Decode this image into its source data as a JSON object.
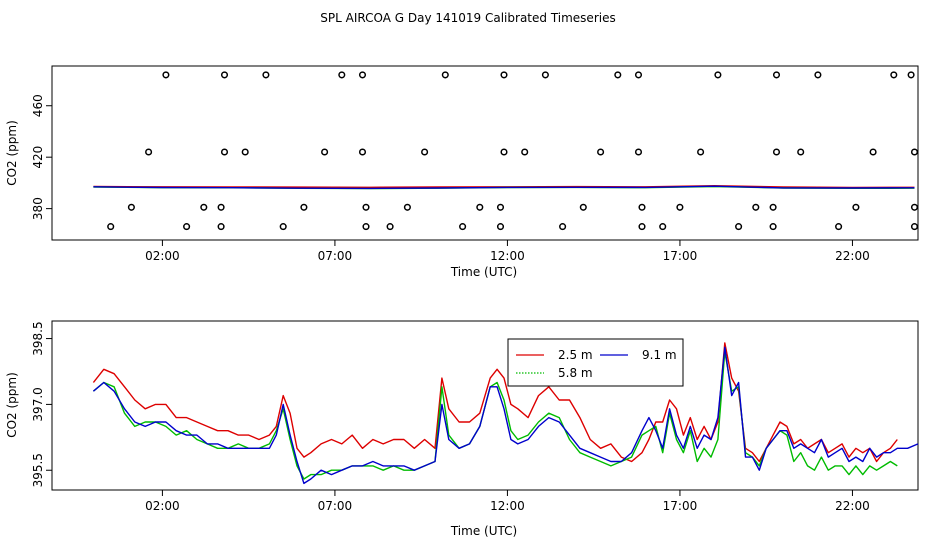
{
  "figure": {
    "title": "SPL AIRCOA G  Day 141019  Calibrated Timeseries"
  },
  "colors": {
    "series_2_5m": "#dd0000",
    "series_5_8m": "#00bb00",
    "series_9_1m": "#0000cc",
    "axes": "#000000",
    "background": "#ffffff"
  },
  "chart_data": [
    {
      "type": "line",
      "id": "top",
      "title": "",
      "xlabel": "Time (UTC)",
      "ylabel": "CO2 (ppm)",
      "xlim": [
        -1.2,
        23.9
      ],
      "ylim": [
        355.6,
        490.9
      ],
      "x_ticks": [
        2,
        7,
        12,
        17,
        22
      ],
      "x_tick_labels": [
        "02:00",
        "07:00",
        "12:00",
        "17:00",
        "22:00"
      ],
      "y_ticks": [
        380,
        420,
        460
      ],
      "y_tick_labels": [
        "380",
        "420",
        "460"
      ],
      "series": [
        {
          "name": "2.5 m",
          "color_key": "series_2_5m",
          "x": [
            0.0,
            2.0,
            4.0,
            6.0,
            8.0,
            10.0,
            12.0,
            14.0,
            16.0,
            18.0,
            20.0,
            22.0,
            23.8
          ],
          "values": [
            397.2,
            397.0,
            396.9,
            396.7,
            396.6,
            396.8,
            397.0,
            397.1,
            397.0,
            397.8,
            396.8,
            396.4,
            396.6
          ]
        },
        {
          "name": "5.8 m",
          "color_key": "series_5_8m",
          "x": [
            0.0,
            2.0,
            4.0,
            6.0,
            8.0,
            10.0,
            12.0,
            14.0,
            16.0,
            18.0,
            20.0,
            22.0,
            23.8
          ],
          "values": [
            396.8,
            396.3,
            396.2,
            395.8,
            395.6,
            395.9,
            396.4,
            396.5,
            396.3,
            397.2,
            396.0,
            395.8,
            395.9
          ]
        },
        {
          "name": "9.1 m",
          "color_key": "series_9_1m",
          "x": [
            0.0,
            2.0,
            4.0,
            6.0,
            8.0,
            10.0,
            12.0,
            14.0,
            16.0,
            18.0,
            20.0,
            22.0,
            23.8
          ],
          "values": [
            397.0,
            396.4,
            396.3,
            395.9,
            395.7,
            396.0,
            396.5,
            396.6,
            396.5,
            397.4,
            396.1,
            396.0,
            396.2
          ]
        }
      ],
      "markers": [
        {
          "x": 0.5,
          "y": 366
        },
        {
          "x": 1.1,
          "y": 381
        },
        {
          "x": 1.6,
          "y": 424
        },
        {
          "x": 2.1,
          "y": 484
        },
        {
          "x": 2.7,
          "y": 366
        },
        {
          "x": 3.2,
          "y": 381
        },
        {
          "x": 3.7,
          "y": 366
        },
        {
          "x": 3.7,
          "y": 381
        },
        {
          "x": 3.8,
          "y": 424
        },
        {
          "x": 3.8,
          "y": 484
        },
        {
          "x": 4.4,
          "y": 424
        },
        {
          "x": 5.0,
          "y": 484
        },
        {
          "x": 5.5,
          "y": 366
        },
        {
          "x": 6.1,
          "y": 381
        },
        {
          "x": 6.7,
          "y": 424
        },
        {
          "x": 7.2,
          "y": 484
        },
        {
          "x": 7.8,
          "y": 484
        },
        {
          "x": 7.8,
          "y": 424
        },
        {
          "x": 7.9,
          "y": 381
        },
        {
          "x": 7.9,
          "y": 366
        },
        {
          "x": 8.6,
          "y": 366
        },
        {
          "x": 9.1,
          "y": 381
        },
        {
          "x": 9.6,
          "y": 424
        },
        {
          "x": 10.2,
          "y": 484
        },
        {
          "x": 10.7,
          "y": 366
        },
        {
          "x": 11.2,
          "y": 381
        },
        {
          "x": 11.8,
          "y": 366
        },
        {
          "x": 11.8,
          "y": 381
        },
        {
          "x": 11.9,
          "y": 424
        },
        {
          "x": 11.9,
          "y": 484
        },
        {
          "x": 12.5,
          "y": 424
        },
        {
          "x": 13.1,
          "y": 484
        },
        {
          "x": 13.6,
          "y": 366
        },
        {
          "x": 14.2,
          "y": 381
        },
        {
          "x": 14.7,
          "y": 424
        },
        {
          "x": 15.2,
          "y": 484
        },
        {
          "x": 15.8,
          "y": 484
        },
        {
          "x": 15.8,
          "y": 424
        },
        {
          "x": 15.9,
          "y": 381
        },
        {
          "x": 15.9,
          "y": 366
        },
        {
          "x": 16.5,
          "y": 366
        },
        {
          "x": 17.0,
          "y": 381
        },
        {
          "x": 17.6,
          "y": 424
        },
        {
          "x": 18.1,
          "y": 484
        },
        {
          "x": 18.7,
          "y": 366
        },
        {
          "x": 19.2,
          "y": 381
        },
        {
          "x": 19.7,
          "y": 366
        },
        {
          "x": 19.7,
          "y": 381
        },
        {
          "x": 19.8,
          "y": 424
        },
        {
          "x": 19.8,
          "y": 484
        },
        {
          "x": 20.5,
          "y": 424
        },
        {
          "x": 21.0,
          "y": 484
        },
        {
          "x": 21.6,
          "y": 366
        },
        {
          "x": 22.1,
          "y": 381
        },
        {
          "x": 22.6,
          "y": 424
        },
        {
          "x": 23.2,
          "y": 484
        },
        {
          "x": 23.7,
          "y": 484
        },
        {
          "x": 23.8,
          "y": 424
        },
        {
          "x": 23.8,
          "y": 381
        },
        {
          "x": 23.8,
          "y": 366
        }
      ]
    },
    {
      "type": "line",
      "id": "bottom",
      "title": "",
      "xlabel": "Time (UTC)",
      "ylabel": "CO2 (ppm)",
      "xlim": [
        -1.2,
        23.9
      ],
      "ylim": [
        395.05,
        398.9
      ],
      "x_ticks": [
        2,
        7,
        12,
        17,
        22
      ],
      "x_tick_labels": [
        "02:00",
        "07:00",
        "12:00",
        "17:00",
        "22:00"
      ],
      "y_ticks": [
        395.5,
        397.0,
        398.5
      ],
      "y_tick_labels": [
        "395.5",
        "397.0",
        "398.5"
      ],
      "legend": {
        "position": "top-center",
        "entries": [
          {
            "label": "2.5 m",
            "color_key": "series_2_5m",
            "line": "solid"
          },
          {
            "label": "9.1 m",
            "color_key": "series_9_1m",
            "line": "solid"
          },
          {
            "label": "5.8 m",
            "color_key": "series_5_8m",
            "line": "dotted"
          }
        ]
      },
      "series": [
        {
          "name": "2.5 m",
          "color_key": "series_2_5m",
          "x": [
            0.0,
            0.3,
            0.6,
            0.9,
            1.2,
            1.5,
            1.8,
            2.1,
            2.4,
            2.7,
            3.0,
            3.3,
            3.6,
            3.9,
            4.2,
            4.5,
            4.8,
            5.1,
            5.3,
            5.5,
            5.7,
            5.9,
            6.1,
            6.3,
            6.6,
            6.9,
            7.2,
            7.5,
            7.8,
            8.1,
            8.4,
            8.7,
            9.0,
            9.3,
            9.6,
            9.9,
            10.1,
            10.3,
            10.6,
            10.9,
            11.2,
            11.5,
            11.7,
            11.9,
            12.1,
            12.3,
            12.6,
            12.9,
            13.2,
            13.5,
            13.8,
            14.1,
            14.4,
            14.7,
            15.0,
            15.3,
            15.6,
            15.9,
            16.1,
            16.3,
            16.5,
            16.7,
            16.9,
            17.1,
            17.3,
            17.5,
            17.7,
            17.9,
            18.1,
            18.3,
            18.5,
            18.7,
            18.9,
            19.1,
            19.3,
            19.5,
            19.7,
            19.9,
            20.1,
            20.3,
            20.5,
            20.7,
            20.9,
            21.1,
            21.3,
            21.5,
            21.7,
            21.9,
            22.1,
            22.3,
            22.5,
            22.7,
            22.9,
            23.1,
            23.3
          ],
          "values": [
            397.5,
            397.8,
            397.7,
            397.4,
            397.1,
            396.9,
            397.0,
            397.0,
            396.7,
            396.7,
            396.6,
            396.5,
            396.4,
            396.4,
            396.3,
            396.3,
            396.2,
            396.3,
            396.5,
            397.2,
            396.8,
            396.0,
            395.8,
            395.9,
            396.1,
            396.2,
            396.1,
            396.3,
            396.0,
            396.2,
            396.1,
            396.2,
            396.2,
            396.0,
            396.2,
            396.0,
            397.6,
            396.9,
            396.6,
            396.6,
            396.8,
            397.6,
            397.8,
            397.6,
            397.0,
            396.9,
            396.7,
            397.2,
            397.4,
            397.1,
            397.1,
            396.7,
            396.2,
            396.0,
            396.1,
            395.8,
            395.7,
            395.9,
            396.2,
            396.6,
            396.6,
            397.1,
            396.9,
            396.3,
            396.7,
            396.2,
            396.5,
            396.2,
            396.6,
            398.4,
            397.6,
            397.3,
            396.0,
            395.9,
            395.7,
            396.0,
            396.3,
            396.6,
            396.5,
            396.1,
            396.2,
            396.0,
            396.1,
            396.2,
            395.9,
            396.0,
            396.1,
            395.8,
            396.0,
            395.9,
            396.0,
            395.7,
            395.9,
            396.0,
            396.2
          ]
        },
        {
          "name": "5.8 m",
          "color_key": "series_5_8m",
          "x": [
            0.0,
            0.3,
            0.6,
            0.9,
            1.2,
            1.5,
            1.8,
            2.1,
            2.4,
            2.7,
            3.0,
            3.3,
            3.6,
            3.9,
            4.2,
            4.5,
            4.8,
            5.1,
            5.3,
            5.5,
            5.7,
            5.9,
            6.1,
            6.3,
            6.6,
            6.9,
            7.2,
            7.5,
            7.8,
            8.1,
            8.4,
            8.7,
            9.0,
            9.3,
            9.6,
            9.9,
            10.1,
            10.3,
            10.6,
            10.9,
            11.2,
            11.5,
            11.7,
            11.9,
            12.1,
            12.3,
            12.6,
            12.9,
            13.2,
            13.5,
            13.8,
            14.1,
            14.4,
            14.7,
            15.0,
            15.3,
            15.6,
            15.9,
            16.1,
            16.3,
            16.5,
            16.7,
            16.9,
            17.1,
            17.3,
            17.5,
            17.7,
            17.9,
            18.1,
            18.3,
            18.5,
            18.7,
            18.9,
            19.1,
            19.3,
            19.5,
            19.7,
            19.9,
            20.1,
            20.3,
            20.5,
            20.7,
            20.9,
            21.1,
            21.3,
            21.5,
            21.7,
            21.9,
            22.1,
            22.3,
            22.5,
            22.7,
            22.9,
            23.1,
            23.3
          ],
          "values": [
            397.3,
            397.5,
            397.4,
            396.8,
            396.5,
            396.6,
            396.6,
            396.5,
            396.3,
            396.4,
            396.2,
            396.1,
            396.0,
            396.0,
            396.1,
            396.0,
            396.0,
            396.1,
            396.4,
            396.9,
            396.2,
            395.6,
            395.3,
            395.4,
            395.4,
            395.5,
            395.5,
            395.6,
            395.6,
            395.6,
            395.5,
            395.6,
            395.5,
            395.5,
            395.6,
            395.7,
            397.4,
            396.3,
            396.0,
            396.1,
            396.5,
            397.4,
            397.5,
            397.1,
            396.4,
            396.2,
            396.3,
            396.6,
            396.8,
            396.7,
            396.2,
            395.9,
            395.8,
            395.7,
            395.6,
            395.7,
            395.8,
            396.3,
            396.4,
            396.5,
            395.9,
            396.8,
            396.2,
            395.9,
            396.4,
            395.7,
            396.0,
            395.8,
            396.2,
            398.2,
            397.3,
            397.4,
            395.9,
            395.8,
            395.6,
            396.0,
            396.2,
            396.4,
            396.3,
            395.7,
            395.9,
            395.6,
            395.5,
            395.8,
            395.5,
            395.6,
            395.6,
            395.4,
            395.6,
            395.4,
            395.6,
            395.5,
            395.6,
            395.7,
            395.6
          ]
        },
        {
          "name": "9.1 m",
          "color_key": "series_9_1m",
          "x": [
            0.0,
            0.3,
            0.6,
            0.9,
            1.2,
            1.5,
            1.8,
            2.1,
            2.4,
            2.7,
            3.0,
            3.3,
            3.6,
            3.9,
            4.2,
            4.5,
            4.8,
            5.1,
            5.3,
            5.5,
            5.7,
            5.9,
            6.1,
            6.3,
            6.6,
            6.9,
            7.2,
            7.5,
            7.8,
            8.1,
            8.4,
            8.7,
            9.0,
            9.3,
            9.6,
            9.9,
            10.1,
            10.3,
            10.6,
            10.9,
            11.2,
            11.5,
            11.7,
            11.9,
            12.1,
            12.3,
            12.6,
            12.9,
            13.2,
            13.5,
            13.8,
            14.1,
            14.4,
            14.7,
            15.0,
            15.3,
            15.6,
            15.9,
            16.1,
            16.3,
            16.5,
            16.7,
            16.9,
            17.1,
            17.3,
            17.5,
            17.7,
            17.9,
            18.1,
            18.3,
            18.5,
            18.7,
            18.9,
            19.1,
            19.3,
            19.5,
            19.7,
            19.9,
            20.1,
            20.3,
            20.5,
            20.7,
            20.9,
            21.1,
            21.3,
            21.5,
            21.7,
            21.9,
            22.1,
            22.3,
            22.5,
            22.7,
            22.9,
            23.1,
            23.3,
            23.6,
            23.9
          ],
          "values": [
            397.3,
            397.5,
            397.3,
            396.9,
            396.6,
            396.5,
            396.6,
            396.6,
            396.4,
            396.3,
            396.3,
            396.1,
            396.1,
            396.0,
            396.0,
            396.0,
            396.0,
            396.0,
            396.3,
            397.0,
            396.3,
            395.7,
            395.2,
            395.3,
            395.5,
            395.4,
            395.5,
            395.6,
            395.6,
            395.7,
            395.6,
            395.6,
            395.6,
            395.5,
            395.6,
            395.7,
            397.0,
            396.2,
            396.0,
            396.1,
            396.5,
            397.4,
            397.4,
            396.9,
            396.2,
            396.1,
            396.2,
            396.5,
            396.7,
            396.6,
            396.3,
            396.0,
            395.9,
            395.8,
            395.7,
            395.7,
            395.9,
            396.4,
            396.7,
            396.4,
            396.0,
            396.9,
            396.3,
            396.0,
            396.5,
            396.0,
            396.3,
            396.2,
            396.7,
            398.3,
            397.2,
            397.5,
            395.8,
            395.8,
            395.5,
            396.0,
            396.2,
            396.4,
            396.4,
            396.0,
            396.1,
            396.0,
            395.9,
            396.2,
            395.8,
            395.9,
            396.0,
            395.7,
            395.8,
            395.7,
            396.0,
            395.8,
            395.9,
            395.9,
            396.0,
            396.0,
            396.1
          ]
        }
      ]
    }
  ]
}
